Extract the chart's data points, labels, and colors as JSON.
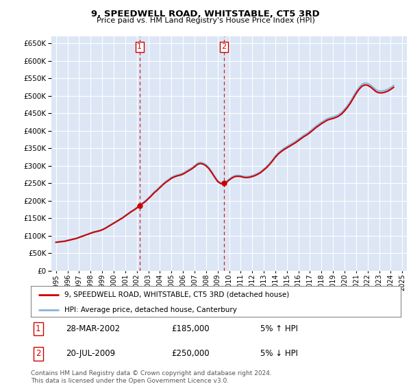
{
  "title": "9, SPEEDWELL ROAD, WHITSTABLE, CT5 3RD",
  "subtitle": "Price paid vs. HM Land Registry's House Price Index (HPI)",
  "ylim": [
    0,
    670000
  ],
  "yticks": [
    0,
    50000,
    100000,
    150000,
    200000,
    250000,
    300000,
    350000,
    400000,
    450000,
    500000,
    550000,
    600000,
    650000
  ],
  "xlim_start": 1994.6,
  "xlim_end": 2025.4,
  "background_color": "#ffffff",
  "plot_bg_color": "#dce6f5",
  "grid_color": "#ffffff",
  "hpi_color": "#8ab4d8",
  "price_color": "#cc0000",
  "vline_color": "#cc0000",
  "sale1": {
    "date_str": "28-MAR-2002",
    "year": 2002.24,
    "price": 185000,
    "hpi_pct": "5% ↑ HPI",
    "label": "1"
  },
  "sale2": {
    "date_str": "20-JUL-2009",
    "year": 2009.55,
    "price": 250000,
    "hpi_pct": "5% ↓ HPI",
    "label": "2"
  },
  "legend_line1": "9, SPEEDWELL ROAD, WHITSTABLE, CT5 3RD (detached house)",
  "legend_line2": "HPI: Average price, detached house, Canterbury",
  "footnote": "Contains HM Land Registry data © Crown copyright and database right 2024.\nThis data is licensed under the Open Government Licence v3.0.",
  "hpi_years": [
    1995,
    1995.25,
    1995.5,
    1995.75,
    1996,
    1996.25,
    1996.5,
    1996.75,
    1997,
    1997.25,
    1997.5,
    1997.75,
    1998,
    1998.25,
    1998.5,
    1998.75,
    1999,
    1999.25,
    1999.5,
    1999.75,
    2000,
    2000.25,
    2000.5,
    2000.75,
    2001,
    2001.25,
    2001.5,
    2001.75,
    2002,
    2002.25,
    2002.5,
    2002.75,
    2003,
    2003.25,
    2003.5,
    2003.75,
    2004,
    2004.25,
    2004.5,
    2004.75,
    2005,
    2005.25,
    2005.5,
    2005.75,
    2006,
    2006.25,
    2006.5,
    2006.75,
    2007,
    2007.25,
    2007.5,
    2007.75,
    2008,
    2008.25,
    2008.5,
    2008.75,
    2009,
    2009.25,
    2009.5,
    2009.75,
    2010,
    2010.25,
    2010.5,
    2010.75,
    2011,
    2011.25,
    2011.5,
    2011.75,
    2012,
    2012.25,
    2012.5,
    2012.75,
    2013,
    2013.25,
    2013.5,
    2013.75,
    2014,
    2014.25,
    2014.5,
    2014.75,
    2015,
    2015.25,
    2015.5,
    2015.75,
    2016,
    2016.25,
    2016.5,
    2016.75,
    2017,
    2017.25,
    2017.5,
    2017.75,
    2018,
    2018.25,
    2018.5,
    2018.75,
    2019,
    2019.25,
    2019.5,
    2019.75,
    2020,
    2020.25,
    2020.5,
    2020.75,
    2021,
    2021.25,
    2021.5,
    2021.75,
    2022,
    2022.25,
    2022.5,
    2022.75,
    2023,
    2023.25,
    2023.5,
    2023.75,
    2024,
    2024.25
  ],
  "hpi_values": [
    82000,
    83000,
    84000,
    85000,
    87000,
    89000,
    91000,
    93000,
    96000,
    99000,
    102000,
    105000,
    108000,
    111000,
    113000,
    115000,
    118000,
    122000,
    127000,
    132000,
    137000,
    142000,
    147000,
    152000,
    158000,
    164000,
    170000,
    175000,
    181000,
    187000,
    194000,
    200000,
    208000,
    216000,
    225000,
    232000,
    240000,
    248000,
    255000,
    261000,
    267000,
    271000,
    274000,
    276000,
    279000,
    284000,
    289000,
    294000,
    300000,
    307000,
    310000,
    308000,
    303000,
    295000,
    283000,
    270000,
    258000,
    252000,
    252000,
    255000,
    262000,
    268000,
    272000,
    273000,
    272000,
    270000,
    269000,
    270000,
    272000,
    275000,
    279000,
    284000,
    291000,
    298000,
    307000,
    317000,
    328000,
    337000,
    344000,
    350000,
    355000,
    360000,
    365000,
    370000,
    376000,
    382000,
    388000,
    393000,
    399000,
    406000,
    413000,
    419000,
    425000,
    430000,
    435000,
    438000,
    440000,
    443000,
    447000,
    453000,
    462000,
    472000,
    484000,
    498000,
    512000,
    524000,
    533000,
    537000,
    536000,
    531000,
    524000,
    517000,
    514000,
    514000,
    516000,
    519000,
    524000,
    530000
  ],
  "xtick_years": [
    1995,
    1996,
    1997,
    1998,
    1999,
    2000,
    2001,
    2002,
    2003,
    2004,
    2005,
    2006,
    2007,
    2008,
    2009,
    2010,
    2011,
    2012,
    2013,
    2014,
    2015,
    2016,
    2017,
    2018,
    2019,
    2020,
    2021,
    2022,
    2023,
    2024,
    2025
  ]
}
